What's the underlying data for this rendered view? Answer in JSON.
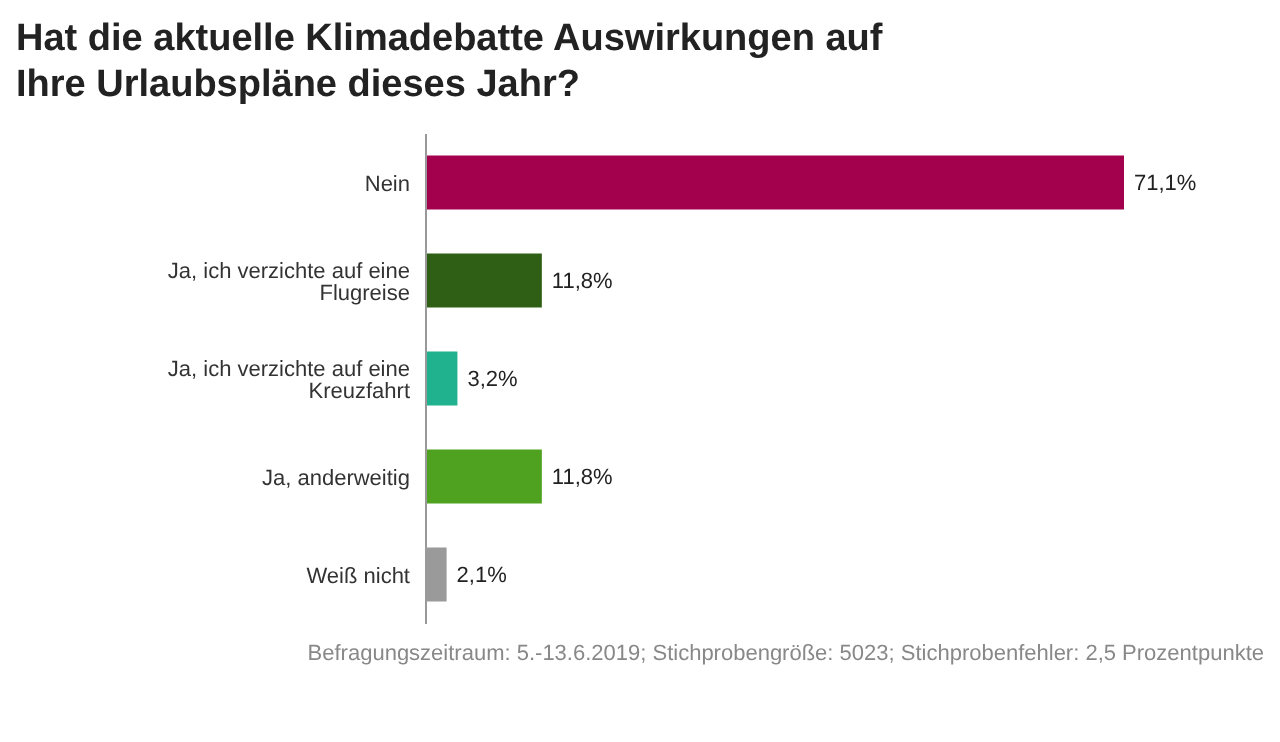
{
  "chart_data": {
    "type": "bar",
    "orientation": "horizontal",
    "title": "Hat die aktuelle Klimadebatte Auswirkungen auf Ihre Urlaubspläne dieses Jahr?",
    "categories": [
      "Nein",
      "Ja, ich verzichte auf eine Flugreise",
      "Ja, ich verzichte auf eine Kreuzfahrt",
      "Ja, anderweitig",
      "Weiß nicht"
    ],
    "values": [
      71.1,
      11.8,
      3.2,
      11.8,
      2.1
    ],
    "value_labels": [
      "71,1%",
      "11,8%",
      "3,2%",
      "11,8%",
      "2,1%"
    ],
    "colors": [
      "#a3004d",
      "#2f5f14",
      "#20b28e",
      "#4fa21f",
      "#9a9a9a"
    ],
    "grid": false,
    "legend": false,
    "annotations": [
      "Befragungszeitraum: 5.-13.6.2019; Stichprobengröße: 5023; Stichprobenfehler: 2,5 Prozentpunkte"
    ]
  }
}
